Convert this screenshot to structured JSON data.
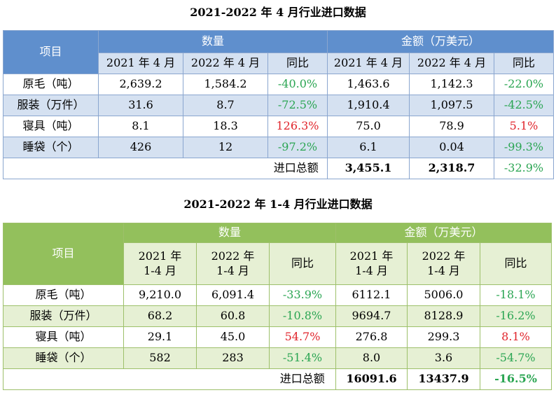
{
  "table1": {
    "title": "2021-2022 年 4 月行业进口数据",
    "header": {
      "item": "项目",
      "qty_group": "数量",
      "amt_group": "金额（万美元）",
      "col_a": "2021 年 4 月",
      "col_b": "2022 年 4 月",
      "yoy": "同比"
    },
    "rows": [
      {
        "name": "原毛（吨）",
        "q21": "2,639.2",
        "q22": "1,584.2",
        "qyoy": "-40.0%",
        "a21": "1,463.6",
        "a22": "1,142.3",
        "ayoy": "-22.0%"
      },
      {
        "name": "服装（万件）",
        "q21": "31.6",
        "q22": "8.7",
        "qyoy": "-72.5%",
        "a21": "1,910.4",
        "a22": "1,097.5",
        "ayoy": "-42.5%"
      },
      {
        "name": "寝具（吨）",
        "q21": "8.1",
        "q22": "18.3",
        "qyoy": "126.3%",
        "a21": "75.0",
        "a22": "78.9",
        "ayoy": "5.1%"
      },
      {
        "name": "睡袋（个）",
        "q21": "426",
        "q22": "12",
        "qyoy": "-97.2%",
        "a21": "6.1",
        "a22": "0.04",
        "ayoy": "-99.3%"
      }
    ],
    "total": {
      "label": "进口总额",
      "a21": "3,455.1",
      "a22": "2,318.7",
      "ayoy": "-32.9%"
    }
  },
  "table2": {
    "title": "2021-2022 年 1-4 月行业进口数据",
    "header": {
      "item": "项目",
      "qty_group": "数量",
      "amt_group": "金额（万美元）",
      "col_a_l1": "2021 年",
      "col_a_l2": "1-4 月",
      "col_b_l1": "2022 年",
      "col_b_l2": "1-4 月",
      "yoy": "同比"
    },
    "rows": [
      {
        "name": "原毛（吨）",
        "q21": "9,210.0",
        "q22": "6,091.4",
        "qyoy": "-33.9%",
        "a21": "6112.1",
        "a22": "5006.0",
        "ayoy": "-18.1%"
      },
      {
        "name": "服装（万件）",
        "q21": "68.2",
        "q22": "60.8",
        "qyoy": "-10.8%",
        "a21": "9694.7",
        "a22": "8128.9",
        "ayoy": "-16.2%"
      },
      {
        "name": "寝具（吨）",
        "q21": "29.1",
        "q22": "45.0",
        "qyoy": "54.7%",
        "a21": "276.8",
        "a22": "299.3",
        "ayoy": "8.1%"
      },
      {
        "name": "睡袋（个）",
        "q21": "582",
        "q22": "283",
        "qyoy": "-51.4%",
        "a21": "8.0",
        "a22": "3.6",
        "ayoy": "-54.7%"
      }
    ],
    "total": {
      "label": "进口总额",
      "a21": "16091.6",
      "a22": "13437.9",
      "ayoy": "-16.5%"
    }
  },
  "colors": {
    "blue_header": "#5f8fcd",
    "blue_band": "#d5e1f1",
    "green_header": "#93c05c",
    "green_band": "#e6f0d4",
    "negative": "#2aa552",
    "positive": "#e0242b"
  }
}
